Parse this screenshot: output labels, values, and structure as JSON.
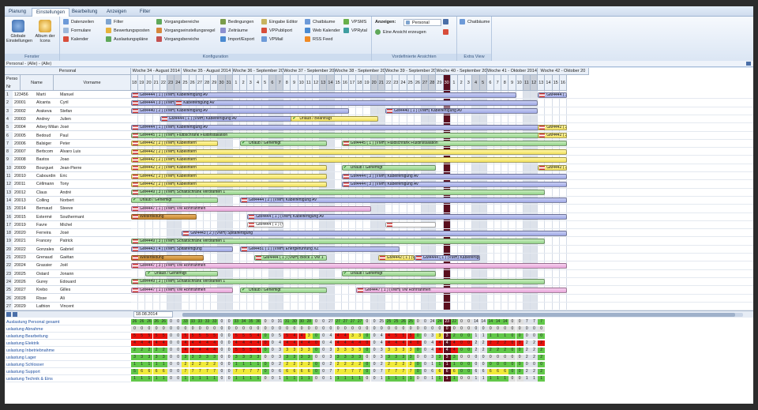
{
  "ribbon_tabs": [
    "Planung",
    "Einstellungen",
    "Bearbeitung",
    "Anzeigen",
    "Filter"
  ],
  "ribbon": {
    "fenster": {
      "label": "Fenster",
      "items": [
        "Globale Einstellungen",
        "Album der Icons"
      ]
    },
    "konfiguration": {
      "label": "Konfiguration",
      "col1": [
        "Datenzeilen",
        "Formulare",
        "Kalender"
      ],
      "col2": [
        "Filter",
        "Bewertungsposten",
        "Auslastungspläne"
      ],
      "col3": [
        "Vorgangsbereiche",
        "Vorgangseinstellungsregel",
        "Vorgangsbereiche"
      ],
      "col4": [
        "Bedingungen",
        "Zeiträume",
        "Import/Export"
      ],
      "col5": [
        "Eingabe Editor",
        "VPPubliport",
        "VPMail"
      ],
      "col6": [
        "Chatbäume",
        "Web Kalender",
        "RSS Feed"
      ],
      "col7": [
        "VPSMS",
        "VPRytal"
      ]
    },
    "ansichten": {
      "label": "Vordefinierte Ansichten",
      "anzeigen": "Anzeigen:",
      "personal": "Personal",
      "erzeugen": "Eine Ansicht erzeugen"
    },
    "extra": {
      "label": "Extra View",
      "item": "Chatbäume"
    }
  },
  "filter_text": "Personal - (Alle) - (Alle)",
  "header": {
    "personal": "Personal",
    "perso": "Perso",
    "nr": "Nr",
    "name": "Name",
    "vorname": "Vorname"
  },
  "weeks": [
    "Woche 34 - August 2014",
    "Woche 35 - August 2014",
    "Woche 36 - September 2014",
    "Woche 37 - September 2014",
    "Woche 38 - September 2014",
    "Woche 39 - September 2014",
    "Woche 40 - September 2014",
    "Woche 41 - Oktober 2014",
    "Woche 42 - Oktober 20"
  ],
  "days": [
    "18",
    "19",
    "20",
    "21",
    "22",
    "23",
    "24",
    "25",
    "26",
    "27",
    "28",
    "29",
    "30",
    "31",
    "1",
    "2",
    "3",
    "4",
    "5",
    "6",
    "7",
    "8",
    "9",
    "10",
    "11",
    "12",
    "13",
    "14",
    "15",
    "16",
    "17",
    "18",
    "19",
    "20",
    "21",
    "22",
    "23",
    "24",
    "25",
    "26",
    "27",
    "28",
    "29",
    "30",
    "1",
    "2",
    "3",
    "4",
    "5",
    "6",
    "7",
    "8",
    "9",
    "10",
    "11",
    "12",
    "13",
    "14",
    "15",
    "16"
  ],
  "rows": [
    [
      "1",
      "123456",
      "Marti",
      "Manuel"
    ],
    [
      "2",
      "20001",
      "Alcanta",
      "Cyril"
    ],
    [
      "3",
      "20002",
      "Arakeva",
      "Stefan"
    ],
    [
      "4",
      "20003",
      "Andrey",
      "Julien"
    ],
    [
      "5",
      "20004",
      "Arbey Milan",
      "José"
    ],
    [
      "6",
      "20005",
      "Bedoud",
      "Paul"
    ],
    [
      "7",
      "20006",
      "Balsiger",
      "Peter"
    ],
    [
      "8",
      "20007",
      "Berbcom",
      "Alvaro Luis"
    ],
    [
      "9",
      "20008",
      "Bastos",
      "Joao"
    ],
    [
      "10",
      "20009",
      "Bourguet",
      "Jean-Pierre"
    ],
    [
      "11",
      "20010",
      "Cabourdin",
      "Eric"
    ],
    [
      "12",
      "20011",
      "Céllmann",
      "Tony"
    ],
    [
      "13",
      "20012",
      "Claus",
      "André"
    ],
    [
      "14",
      "20013",
      "Colling",
      "Norbert"
    ],
    [
      "15",
      "20014",
      "Bernaud",
      "Steeve"
    ],
    [
      "16",
      "20015",
      "Extermé",
      "Southermant"
    ],
    [
      "17",
      "20019",
      "Favre",
      "Michel"
    ],
    [
      "18",
      "20020",
      "Ferreira",
      "José"
    ],
    [
      "19",
      "20021",
      "Francey",
      "Patrick"
    ],
    [
      "20",
      "20022",
      "Gonzales",
      "Gabriel"
    ],
    [
      "21",
      "20023",
      "Grenaud",
      "Gaëtan"
    ],
    [
      "22",
      "20024",
      "Grassier",
      "Joël"
    ],
    [
      "23",
      "20025",
      "Ostard",
      "Jonann"
    ],
    [
      "24",
      "20026",
      "Gurey",
      "Edouard"
    ],
    [
      "25",
      "20027",
      "Krebo",
      "Gilles"
    ],
    [
      "26",
      "20028",
      "Risse",
      "Ali"
    ],
    [
      "27",
      "20029",
      "Lathion",
      "Vincent"
    ]
  ],
  "bars": [
    {
      "row": 1,
      "from": 0,
      "to": 53,
      "color": "blue",
      "text": "GM4444 ( 1 ) (VMH) Kabelfertigung AV"
    },
    {
      "row": 1,
      "from": 56,
      "to": 60,
      "color": "blue",
      "text": "GM4444 ( 1 ) (VMH) Kab"
    },
    {
      "row": 2,
      "from": 0,
      "to": 7,
      "color": "blue",
      "text": "GM4444 ( 3 ) (VMH) K"
    },
    {
      "row": 2,
      "from": 6,
      "to": 56,
      "color": "blue",
      "text": "Kabelfertigung AV"
    },
    {
      "row": 3,
      "from": 0,
      "to": 30,
      "color": "blue",
      "text": "GM4440 ( 2 ) (VMH) Kabelfertigung AV"
    },
    {
      "row": 3,
      "from": 35,
      "to": 56,
      "color": "blue",
      "text": "GM4440 ( 1 ) (VMH) Kabelfertigung AV"
    },
    {
      "row": 4,
      "from": 4,
      "to": 29,
      "color": "blue",
      "text": "GM4444 ( 1 ) (VMH) Kabelfertigung AV"
    },
    {
      "row": 4,
      "from": 22,
      "to": 34,
      "color": "yellow",
      "chk": true,
      "text": "Urlaub / Beantragt"
    },
    {
      "row": 5,
      "from": 0,
      "to": 60,
      "color": "blue",
      "text": "GM4444 ( 1 ) (VMH) Kabelfertigung AV"
    },
    {
      "row": 5,
      "from": 56,
      "to": 60,
      "color": "yellow",
      "text": "GM4442 ( 3 ) (VMH"
    },
    {
      "row": 6,
      "from": 0,
      "to": 60,
      "color": "green",
      "text": "GM4445 ( 1 ) (VMH) Flutbschrank Fluidinstallation"
    },
    {
      "row": 6,
      "from": 56,
      "to": 60,
      "color": "yellow",
      "text": "GM4442 ( 3 ) (VMH"
    },
    {
      "row": 7,
      "from": 0,
      "to": 12,
      "color": "yellow",
      "text": "GM4442 ( 2 ) (VMH) Kabelintern"
    },
    {
      "row": 7,
      "from": 15,
      "to": 27,
      "color": "green",
      "chk": true,
      "text": "Urlaub / Genemigt"
    },
    {
      "row": 7,
      "from": 29,
      "to": 60,
      "color": "green",
      "text": "GM4445 ( 1 ) (VMH) Fluidschrank Fluidinstallation"
    },
    {
      "row": 8,
      "from": 0,
      "to": 60,
      "color": "yellow",
      "text": "GM4442 ( 2 ) (VMH) Kabelintern"
    },
    {
      "row": 9,
      "from": 0,
      "to": 60,
      "color": "yellow",
      "text": "GM4442 ( 2 ) (VMH) Kabelintern"
    },
    {
      "row": 10,
      "from": 0,
      "to": 27,
      "color": "yellow",
      "text": "GM4442 ( 2 ) (VMH) Kabelintern"
    },
    {
      "row": 10,
      "from": 29,
      "to": 42,
      "color": "green",
      "chk": true,
      "text": "Urlaub / Genemigt"
    },
    {
      "row": 10,
      "from": 56,
      "to": 60,
      "color": "yellow",
      "text": "GM4442 ( 3 ) (VMH"
    },
    {
      "row": 11,
      "from": 0,
      "to": 27,
      "color": "yellow",
      "text": "GM4442 ( 2 ) (VMH) Kabelintern"
    },
    {
      "row": 11,
      "from": 29,
      "to": 60,
      "color": "blue",
      "text": "GM4444 ( 3 ) (VMH) Kabelfertigung AV"
    },
    {
      "row": 12,
      "from": 0,
      "to": 27,
      "color": "yellow",
      "text": "GM4442 ( 2 ) (VMH) Kabelintern"
    },
    {
      "row": 12,
      "from": 29,
      "to": 60,
      "color": "blue",
      "text": "GM4444 ( 3 ) (VMH) Kabelfertigung AV"
    },
    {
      "row": 13,
      "from": 0,
      "to": 57,
      "color": "green",
      "text": "GM4449 ( 3 ) (VMH) Schaltschrank Verdrahten 1"
    },
    {
      "row": 14,
      "from": 0,
      "to": 12,
      "color": "green",
      "chk": true,
      "text": "Urlaub / Genemigt"
    },
    {
      "row": 14,
      "from": 15,
      "to": 60,
      "color": "blue",
      "text": "GM4444 ( 2 ) (VMH) Kabelfertigung AV"
    },
    {
      "row": 15,
      "from": 0,
      "to": 33,
      "color": "pink",
      "text": "GM4447 ( 1 ) (VMH) VM Rohrrahmen"
    },
    {
      "row": 16,
      "from": 0,
      "to": 9,
      "color": "orange",
      "text": "Weiterbildung"
    },
    {
      "row": 16,
      "from": 16,
      "to": 60,
      "color": "blue",
      "text": "GM4444 ( 1 ) (VMH) Kabelfertigung AV"
    },
    {
      "row": 17,
      "from": 16,
      "to": 21,
      "color": "white",
      "text": "GM4444 ( 1 ) (VMH)"
    },
    {
      "row": 17,
      "from": 35,
      "to": 42,
      "color": "white",
      "text": ""
    },
    {
      "row": 18,
      "from": 7,
      "to": 60,
      "color": "blue",
      "text": "GM4443 ( 2 ) (VMH) Spitalfertigung"
    },
    {
      "row": 19,
      "from": 0,
      "to": 57,
      "color": "green",
      "text": "GM4449 ( 3 ) (VMH) Schaltschrank Verdrahten 1"
    },
    {
      "row": 20,
      "from": 0,
      "to": 14,
      "color": "blue",
      "text": "GM4443 ( 4 ) (VMH) Spitalfertigung"
    },
    {
      "row": 20,
      "from": 15,
      "to": 37,
      "color": "blue",
      "text": "GM4451 ( 1 ) (VMH) Energieführung XZ"
    },
    {
      "row": 21,
      "from": 0,
      "to": 10,
      "color": "orange",
      "text": "Weiterbildung"
    },
    {
      "row": 21,
      "from": 17,
      "to": 27,
      "color": "green",
      "text": "GM4444 ( 1 ) (VMH) Block 1 VM 1"
    },
    {
      "row": 21,
      "from": 34,
      "to": 39,
      "color": "yellow",
      "text": "GM4442 ( 1 ) (VMH) Ki"
    },
    {
      "row": 21,
      "from": 39,
      "to": 48,
      "color": "blue",
      "text": "GM4444 ( 1 ) (VMH) Kabelfertigu"
    },
    {
      "row": 22,
      "from": 0,
      "to": 60,
      "color": "pink",
      "text": "GM4447 ( 3 ) (VMH) VM Rohrrahmen"
    },
    {
      "row": 23,
      "from": 2,
      "to": 12,
      "color": "green",
      "chk": true,
      "text": "Urlaub / Genemigt"
    },
    {
      "row": 23,
      "from": 29,
      "to": 42,
      "color": "green",
      "chk": true,
      "text": "Urlaub / Genemigt"
    },
    {
      "row": 24,
      "from": 0,
      "to": 57,
      "color": "green",
      "text": "GM4449 ( 3 ) (VMH) Schaltschrank Verdrahten 1"
    },
    {
      "row": 25,
      "from": 0,
      "to": 14,
      "color": "pink",
      "text": "GM4447 ( 1 ) (VMH) VM Rohrrahmen"
    },
    {
      "row": 25,
      "from": 15,
      "to": 27,
      "color": "green",
      "chk": true,
      "text": "Urlaub / Genemigt"
    },
    {
      "row": 25,
      "from": 31,
      "to": 60,
      "color": "pink",
      "text": "GM4447 ( 1 ) (VMH) VM Rohrrahmen"
    }
  ],
  "date_box": "18.08.2014",
  "stats_labels": [
    "Auslastung Personal gesamt",
    "uslastung Abnahme",
    "uslastung Bearbeitung",
    "uslastung Elektrik",
    "uslastung Inbetriebnahme",
    "uslastung Lager",
    "uslastung Schlosser",
    "uslastung Support",
    "uslastung Technik & Eins"
  ],
  "stats_rows": [
    [
      "26",
      "26",
      "26",
      "26",
      "26",
      "0",
      "0",
      "33",
      "33",
      "33",
      "33",
      "33",
      "0",
      "0",
      "33",
      "34",
      "35",
      "36",
      "0",
      "0",
      "31",
      "31",
      "30",
      "30",
      "28",
      "0",
      "0",
      "27",
      "27",
      "27",
      "27",
      "27",
      "0",
      "0",
      "25",
      "25",
      "25",
      "26",
      "25",
      "0",
      "0",
      "24",
      "24",
      "23",
      "22",
      "0",
      "0",
      "14",
      "14",
      "14",
      "14",
      "14",
      "0",
      "0",
      "7",
      "7",
      "7"
    ],
    [
      "0",
      "0",
      "0",
      "0",
      "0",
      "0",
      "0",
      "0",
      "0",
      "0",
      "0",
      "0",
      "0",
      "0",
      "0",
      "0",
      "0",
      "0",
      "0",
      "0",
      "0",
      "0",
      "0",
      "0",
      "0",
      "0",
      "0",
      "0",
      "0",
      "0",
      "0",
      "0",
      "0",
      "0",
      "0",
      "0",
      "0",
      "0",
      "0",
      "0",
      "0",
      "0",
      "0",
      "0",
      "0",
      "0",
      "0",
      "0",
      "0",
      "0",
      "0",
      "0",
      "0",
      "0",
      "0",
      "0",
      "0"
    ],
    [
      "5",
      "5",
      "5",
      "5",
      "5",
      "0",
      "0",
      "5",
      "5",
      "5",
      "5",
      "5",
      "0",
      "0",
      "5",
      "5",
      "5",
      "4",
      "0",
      "0",
      "5",
      "5",
      "4",
      "4",
      "3",
      "0",
      "0",
      "4",
      "4",
      "4",
      "3",
      "3",
      "0",
      "0",
      "4",
      "4",
      "5",
      "5",
      "5",
      "0",
      "0",
      "3",
      "3",
      "3",
      "2",
      "0",
      "0",
      "1",
      "1",
      "1",
      "1",
      "1",
      "0",
      "0",
      "0",
      "0",
      "0"
    ],
    [
      "4",
      "4",
      "4",
      "4",
      "4",
      "0",
      "0",
      "4",
      "4",
      "4",
      "4",
      "4",
      "0",
      "0",
      "4",
      "4",
      "4",
      "4",
      "0",
      "0",
      "4",
      "4",
      "4",
      "4",
      "4",
      "0",
      "0",
      "4",
      "4",
      "4",
      "4",
      "4",
      "0",
      "0",
      "4",
      "4",
      "4",
      "4",
      "4",
      "0",
      "0",
      "4",
      "4",
      "4",
      "4",
      "0",
      "0",
      "2",
      "2",
      "2",
      "2",
      "2",
      "0",
      "0",
      "2",
      "2",
      "2"
    ],
    [
      "2",
      "2",
      "2",
      "2",
      "2",
      "0",
      "0",
      "4",
      "4",
      "4",
      "4",
      "4",
      "0",
      "0",
      "5",
      "5",
      "5",
      "5",
      "0",
      "0",
      "3",
      "3",
      "3",
      "3",
      "3",
      "0",
      "0",
      "3",
      "3",
      "3",
      "3",
      "3",
      "0",
      "0",
      "3",
      "3",
      "3",
      "3",
      "3",
      "0",
      "0",
      "4",
      "4",
      "4",
      "4",
      "0",
      "0",
      "2",
      "2",
      "2",
      "2",
      "2",
      "0",
      "0",
      "2",
      "2",
      "2"
    ],
    [
      "3",
      "3",
      "3",
      "3",
      "3",
      "0",
      "0",
      "3",
      "3",
      "3",
      "3",
      "3",
      "0",
      "0",
      "3",
      "3",
      "3",
      "3",
      "0",
      "0",
      "3",
      "3",
      "3",
      "3",
      "3",
      "0",
      "0",
      "3",
      "3",
      "3",
      "3",
      "3",
      "0",
      "0",
      "3",
      "3",
      "3",
      "3",
      "3",
      "0",
      "0",
      "3",
      "3",
      "3",
      "3",
      "0",
      "0",
      "0",
      "0",
      "0",
      "0",
      "0",
      "0",
      "0",
      "2",
      "2",
      "2"
    ],
    [
      "1",
      "1",
      "1",
      "1",
      "1",
      "0",
      "0",
      "2",
      "2",
      "2",
      "2",
      "2",
      "0",
      "0",
      "1",
      "1",
      "1",
      "1",
      "0",
      "0",
      "2",
      "2",
      "2",
      "2",
      "2",
      "0",
      "0",
      "2",
      "2",
      "2",
      "2",
      "2",
      "0",
      "0",
      "2",
      "2",
      "2",
      "2",
      "2",
      "0",
      "0",
      "1",
      "1",
      "1",
      "1",
      "0",
      "0",
      "0",
      "0",
      "0",
      "0",
      "0",
      "0",
      "0",
      "0",
      "0",
      "0"
    ],
    [
      "5",
      "6",
      "6",
      "6",
      "6",
      "0",
      "0",
      "7",
      "7",
      "7",
      "7",
      "7",
      "0",
      "0",
      "7",
      "7",
      "7",
      "7",
      "0",
      "0",
      "6",
      "6",
      "6",
      "6",
      "6",
      "0",
      "0",
      "7",
      "7",
      "7",
      "7",
      "7",
      "0",
      "0",
      "7",
      "7",
      "7",
      "7",
      "7",
      "0",
      "0",
      "6",
      "6",
      "6",
      "6",
      "0",
      "0",
      "6",
      "6",
      "6",
      "6",
      "6",
      "0",
      "0",
      "2",
      "2",
      "2"
    ],
    [
      "1",
      "1",
      "1",
      "1",
      "1",
      "0",
      "0",
      "1",
      "1",
      "1",
      "1",
      "1",
      "0",
      "0",
      "1",
      "1",
      "1",
      "1",
      "0",
      "0",
      "1",
      "1",
      "1",
      "1",
      "1",
      "0",
      "0",
      "1",
      "1",
      "1",
      "1",
      "1",
      "0",
      "0",
      "1",
      "1",
      "1",
      "1",
      "1",
      "0",
      "0",
      "1",
      "1",
      "1",
      "1",
      "0",
      "0",
      "1",
      "1",
      "1",
      "1",
      "1",
      "0",
      "0",
      "1",
      "1",
      "1"
    ]
  ],
  "colors": {
    "weekend": "#c8ced8",
    "today": "#5a0f1e",
    "red": "#e8120c",
    "green": "#62c84a",
    "yellow": "#f0ea3a",
    "gray": "#e0e0e0"
  }
}
